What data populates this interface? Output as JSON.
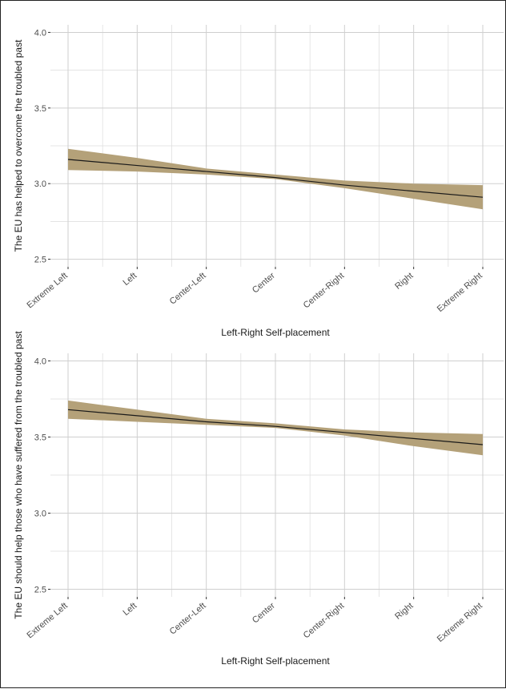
{
  "chart_data": [
    {
      "type": "line",
      "xlabel": "Left-Right Self-placement",
      "ylabel": "The EU has helped to overcome the troubled past",
      "categories": [
        "Extreme Left",
        "Left",
        "Center-Left",
        "Center",
        "Center-Right",
        "Right",
        "Extreme Right"
      ],
      "ylim": [
        2.45,
        4.05
      ],
      "yticks": [
        "2.5",
        "3.0",
        "3.5",
        "4.0"
      ],
      "grid": true,
      "series": [
        {
          "values": [
            3.16,
            3.12,
            3.08,
            3.04,
            2.99,
            2.95,
            2.91
          ],
          "lower": [
            3.09,
            3.08,
            3.06,
            3.03,
            2.97,
            2.9,
            2.83
          ],
          "upper": [
            3.23,
            3.17,
            3.1,
            3.06,
            3.02,
            3.0,
            2.99
          ]
        }
      ],
      "colors": {
        "line": "#1a1a1a",
        "band": "#b4a179"
      }
    },
    {
      "type": "line",
      "xlabel": "Left-Right Self-placement",
      "ylabel": "The EU should help those who have suffered from the troubled past",
      "categories": [
        "Extreme Left",
        "Left",
        "Center-Left",
        "Center",
        "Center-Right",
        "Right",
        "Extreme Right"
      ],
      "ylim": [
        2.45,
        4.05
      ],
      "yticks": [
        "2.5",
        "3.0",
        "3.5",
        "4.0"
      ],
      "grid": true,
      "series": [
        {
          "values": [
            3.68,
            3.64,
            3.6,
            3.57,
            3.53,
            3.49,
            3.45
          ],
          "lower": [
            3.62,
            3.6,
            3.58,
            3.56,
            3.51,
            3.44,
            3.38
          ],
          "upper": [
            3.74,
            3.68,
            3.62,
            3.59,
            3.55,
            3.53,
            3.52
          ]
        }
      ],
      "colors": {
        "line": "#1a1a1a",
        "band": "#b4a179"
      }
    }
  ]
}
